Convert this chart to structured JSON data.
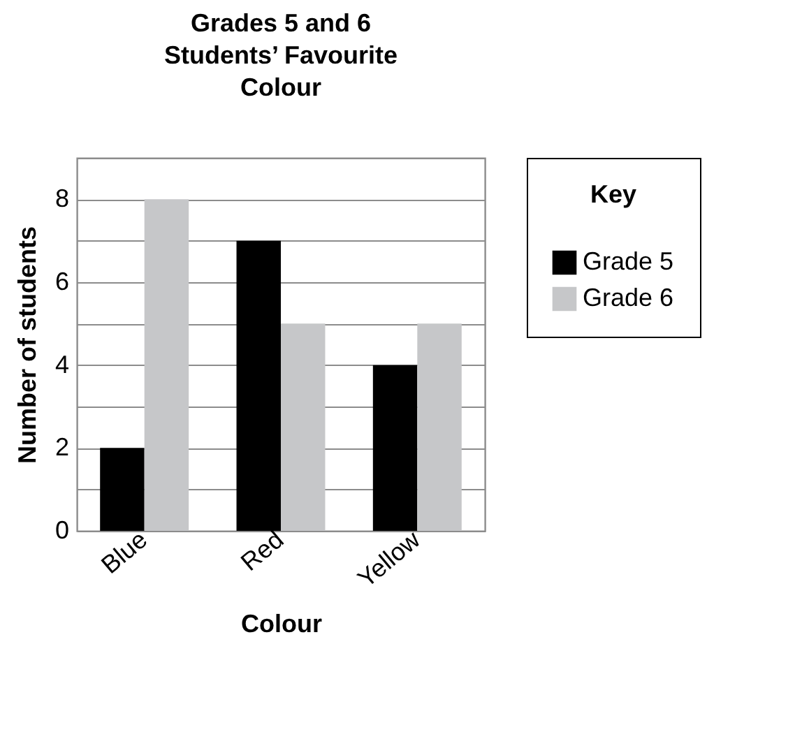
{
  "chart_data": {
    "type": "bar",
    "title": "Grades 5 and 6 Students’ Favourite Colour",
    "xlabel": "Colour",
    "ylabel": "Number of students",
    "legend_title": "Key",
    "categories": [
      "Blue",
      "Red",
      "Yellow"
    ],
    "series": [
      {
        "name": "Grade 5",
        "color": "#000000",
        "values": [
          2,
          7,
          4
        ]
      },
      {
        "name": "Grade 6",
        "color": "#c6c7c9",
        "values": [
          8,
          5,
          5
        ]
      }
    ],
    "ylim": [
      0,
      9
    ],
    "yticks": [
      0,
      {
        "value": 1,
        "label": null
      },
      2,
      {
        "value": 3,
        "label": null
      },
      4,
      {
        "value": 5,
        "label": null
      },
      6,
      {
        "value": 7,
        "label": null
      },
      8,
      {
        "value": 9,
        "label": null
      }
    ],
    "grid": "y",
    "legend": "right"
  }
}
